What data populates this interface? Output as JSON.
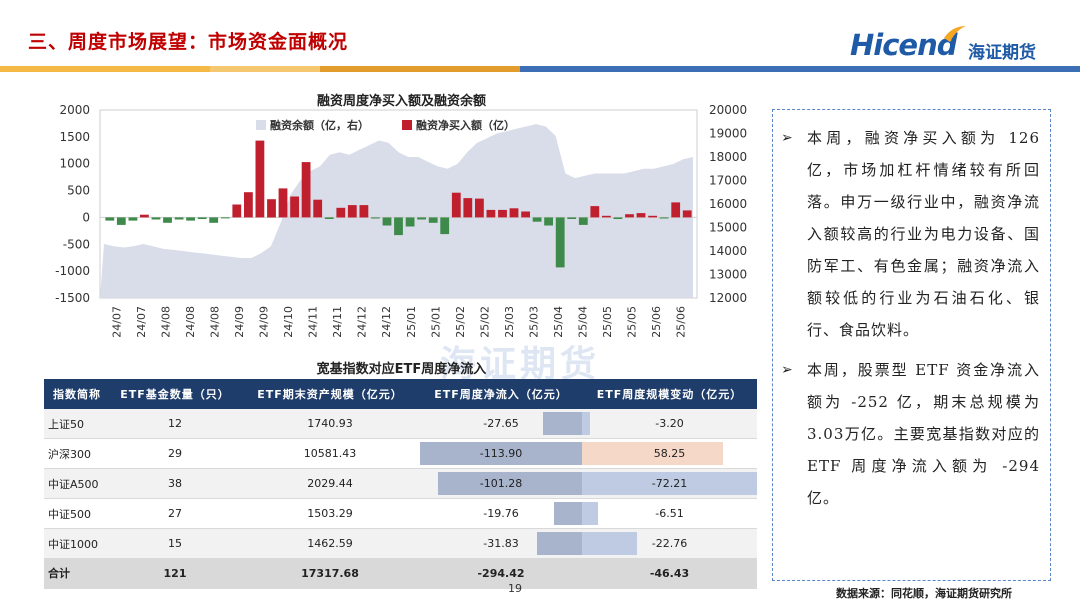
{
  "header": {
    "title": "三、周度市场展望：市场资金面概况",
    "logo_text": "Hicend",
    "logo_cn": "海证期货",
    "bar_colors": [
      "#f5b945",
      "#f5b945",
      "#e39d2c",
      "#3d6fb6",
      "#3d6fb6"
    ]
  },
  "chart_data": {
    "type": "bar+area",
    "title": "融资周度净买入额及融资余额",
    "categories": [
      "24/07",
      "24/07",
      "24/08",
      "24/08",
      "24/08",
      "24/09",
      "24/09",
      "24/10",
      "24/11",
      "24/11",
      "24/12",
      "24/12",
      "25/01",
      "25/01",
      "25/02",
      "25/02",
      "25/03",
      "25/03",
      "25/04",
      "25/04",
      "25/05",
      "25/05",
      "25/06",
      "25/06"
    ],
    "legend": [
      {
        "name": "融资余额（亿，右）",
        "color": "#d9dde9"
      },
      {
        "name": "融资净买入额（亿）",
        "color": "#c0202e"
      }
    ],
    "left_ylim": [
      -1500,
      2000
    ],
    "left_ticks": [
      2000,
      1500,
      1000,
      500,
      0,
      -500,
      -1000,
      -1500
    ],
    "right_ylim": [
      12000,
      20000
    ],
    "right_ticks": [
      20000,
      19000,
      18000,
      17000,
      16000,
      15000,
      14000,
      13000,
      12000
    ],
    "net_buy": [
      -60,
      -140,
      -60,
      50,
      -40,
      -100,
      -40,
      -60,
      -30,
      -100,
      -10,
      240,
      470,
      1430,
      340,
      540,
      390,
      1030,
      330,
      -30,
      180,
      230,
      230,
      -20,
      -150,
      -330,
      -170,
      -40,
      -100,
      -310,
      460,
      360,
      350,
      140,
      140,
      170,
      110,
      -80,
      -150,
      -930,
      -30,
      -140,
      210,
      30,
      -30,
      60,
      80,
      30,
      -20,
      280,
      130
    ],
    "balance": [
      14300,
      14200,
      14150,
      14200,
      14300,
      14200,
      14100,
      14050,
      14000,
      13950,
      13900,
      13850,
      13800,
      13750,
      13700,
      13700,
      13900,
      14200,
      15200,
      16400,
      17000,
      17400,
      17600,
      18100,
      18200,
      18100,
      18300,
      18500,
      18700,
      18600,
      18200,
      18000,
      18000,
      17800,
      17600,
      17500,
      17700,
      18200,
      18600,
      18800,
      19000,
      19100,
      19200,
      19300,
      19400,
      19300,
      18900,
      17300,
      17100,
      17200,
      17300,
      17300,
      17300,
      17300,
      17400,
      17500,
      17500,
      17600,
      17700,
      17900,
      18000
    ]
  },
  "table": {
    "title": "宽基指数对应ETF周度净流入",
    "headers": [
      "指数简称",
      "ETF基金数量（只）",
      "ETF期末资产规模（亿元）",
      "ETF周度净流入（亿元）",
      "ETF周度规模变动（亿元）"
    ],
    "rows": [
      {
        "name": "上证50",
        "count": "12",
        "aum": "1740.93",
        "flow": "-27.65",
        "flow_num": -27.65,
        "chg": "-3.20",
        "chg_num": -3.2
      },
      {
        "name": "沪深300",
        "count": "29",
        "aum": "10581.43",
        "flow": "-113.90",
        "flow_num": -113.9,
        "chg": "58.25",
        "chg_num": 58.25
      },
      {
        "name": "中证A500",
        "count": "38",
        "aum": "2029.44",
        "flow": "-101.28",
        "flow_num": -101.28,
        "chg": "-72.21",
        "chg_num": -72.21
      },
      {
        "name": "中证500",
        "count": "27",
        "aum": "1503.29",
        "flow": "-19.76",
        "flow_num": -19.76,
        "chg": "-6.51",
        "chg_num": -6.51
      },
      {
        "name": "中证1000",
        "count": "15",
        "aum": "1462.59",
        "flow": "-31.83",
        "flow_num": -31.83,
        "chg": "-22.76",
        "chg_num": -22.76
      }
    ],
    "total": {
      "name": "合计",
      "count": "121",
      "aum": "17317.68",
      "flow": "-294.42",
      "chg": "-46.43"
    }
  },
  "watermark": "海证期货",
  "side_text": {
    "bullet_mark": "➢",
    "p1": "本周，融资净买入额为 126 亿，市场加杠杆情绪较有所回落。申万一级行业中，融资净流入额较高的行业为电力设备、国防军工、有色金属；融资净流入额较低的行业为石油石化、银行、食品饮料。",
    "p2": "本周，股票型 ETF 资金净流入额为 -252 亿，期末总规模为 3.03万亿。主要宽基指数对应的 ETF 周度净流入额为 -294 亿。"
  },
  "footer": {
    "page_number": "19",
    "source": "数据来源：同花顺，海证期货研究所"
  }
}
